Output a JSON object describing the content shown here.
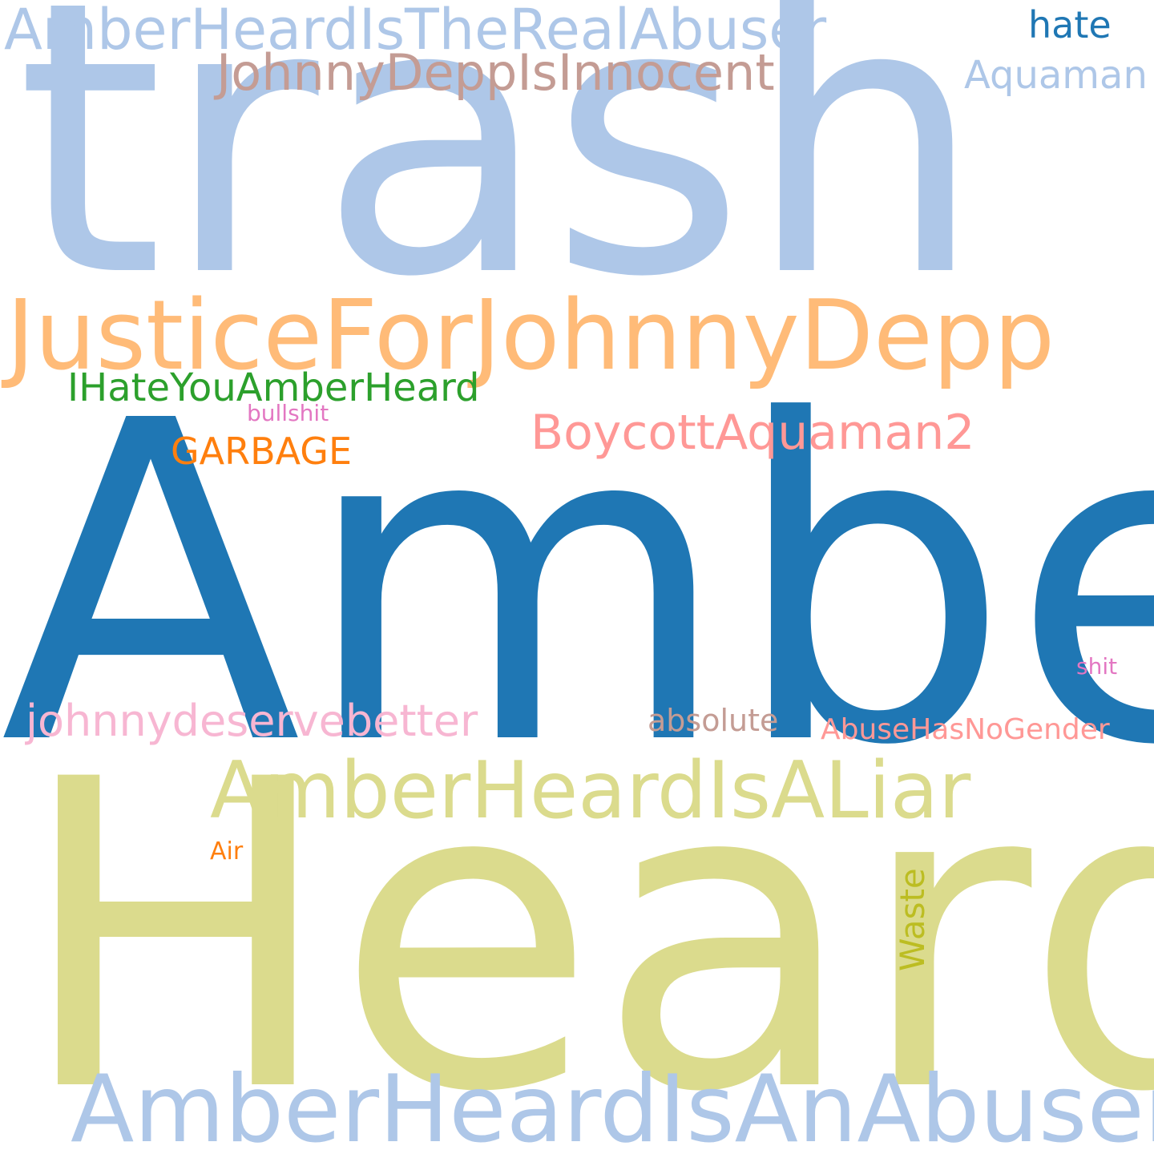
{
  "words": [
    {
      "id": "trash",
      "text": "trash",
      "color": "#aec7e8"
    },
    {
      "id": "amber",
      "text": "Amber",
      "color": "#1f77b4"
    },
    {
      "id": "heard",
      "text": "Heard",
      "color": "#dbdb8d"
    },
    {
      "id": "justice-for-johnny-depp",
      "text": "JusticeForJohnnyDepp",
      "color": "#ffbb78"
    },
    {
      "id": "amber-heard-is-the-real-abuser",
      "text": "AmberHeardIsTheRealAbuser",
      "color": "#aec7e8"
    },
    {
      "id": "johnny-depp-is-innocent",
      "text": "JohnnyDeppIsInnocent",
      "color": "#c49c94"
    },
    {
      "id": "hate",
      "text": "hate",
      "color": "#1f77b4"
    },
    {
      "id": "aquaman",
      "text": "Aquaman",
      "color": "#aec7e8"
    },
    {
      "id": "i-hate-you-amber-heard",
      "text": "IHateYouAmberHeard",
      "color": "#2ca02c"
    },
    {
      "id": "bullshit",
      "text": "bullshit",
      "color": "#e377c2"
    },
    {
      "id": "boycott-aquaman2",
      "text": "BoycottAquaman2",
      "color": "#ff9896"
    },
    {
      "id": "garbage",
      "text": "GARBAGE",
      "color": "#ff7f0e"
    },
    {
      "id": "shit",
      "text": "shit",
      "color": "#e377c2"
    },
    {
      "id": "johnnydeservebetter",
      "text": "johnnydeservebetter",
      "color": "#f7b6d2"
    },
    {
      "id": "absolute",
      "text": "absolute",
      "color": "#c49c94"
    },
    {
      "id": "abuse-has-no-gender",
      "text": "AbuseHasNoGender",
      "color": "#ff9896"
    },
    {
      "id": "amber-heard-is-a-liar",
      "text": "AmberHeardIsALiar",
      "color": "#dbdb8d"
    },
    {
      "id": "air",
      "text": "Air",
      "color": "#ff7f0e"
    },
    {
      "id": "waste",
      "text": "Waste",
      "color": "#bcbd22"
    },
    {
      "id": "amber-heard-is-an-abuser",
      "text": "AmberHeardIsAnAbuser",
      "color": "#aec7e8"
    }
  ]
}
